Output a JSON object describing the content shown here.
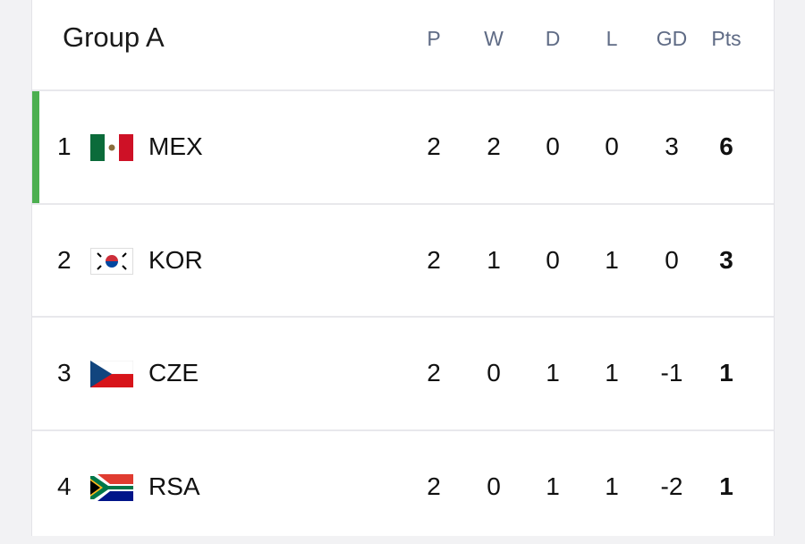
{
  "header": {
    "title": "Group A",
    "columns": [
      "P",
      "W",
      "D",
      "L",
      "GD",
      "Pts"
    ]
  },
  "rows": [
    {
      "rank": 1,
      "team": "MEX",
      "stats": [
        2,
        2,
        0,
        0,
        3,
        6
      ]
    },
    {
      "rank": 2,
      "team": "KOR",
      "stats": [
        2,
        1,
        0,
        1,
        0,
        3
      ]
    },
    {
      "rank": 3,
      "team": "CZE",
      "stats": [
        2,
        0,
        1,
        1,
        -1,
        1
      ]
    },
    {
      "rank": 4,
      "team": "RSA",
      "stats": [
        2,
        0,
        1,
        1,
        -2,
        1
      ]
    }
  ]
}
